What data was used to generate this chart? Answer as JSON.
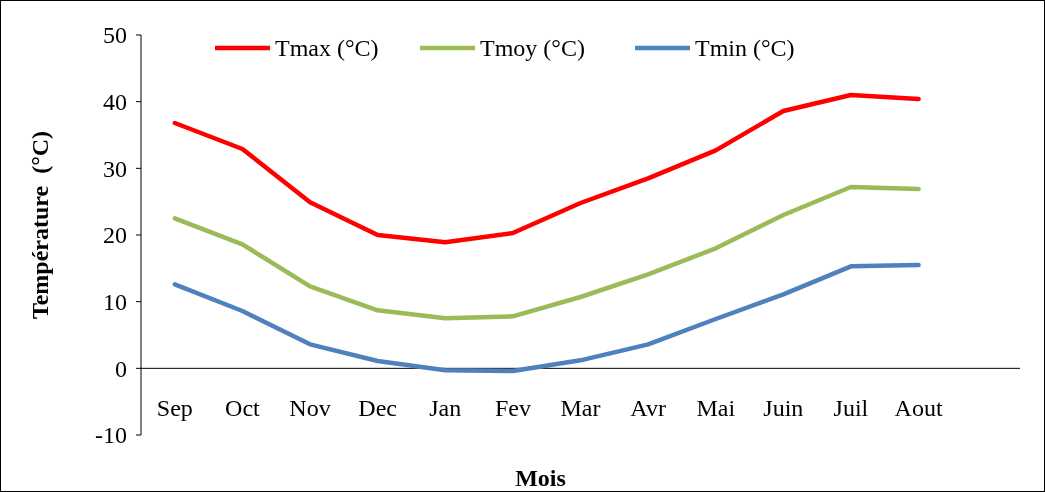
{
  "chart_data": {
    "type": "line",
    "xlabel": "Mois",
    "ylabel": "Température  (°C)",
    "categories": [
      "Sep",
      "Oct",
      "Nov",
      "Dec",
      "Jan",
      "Fev",
      "Mar",
      "Avr",
      "Mai",
      "Juin",
      "Juil",
      "Aout",
      null
    ],
    "series": [
      {
        "name": "Tmax (°C)",
        "color": "#ff0000",
        "values": [
          36.8,
          32.9,
          24.9,
          20.0,
          18.9,
          20.3,
          24.8,
          28.5,
          32.7,
          38.6,
          41.0,
          40.4,
          null
        ]
      },
      {
        "name": "Tmoy (°C)",
        "color": "#9bbb59",
        "values": [
          22.5,
          18.6,
          12.3,
          8.7,
          7.5,
          7.8,
          10.7,
          14.1,
          18.0,
          23.0,
          27.2,
          26.9,
          null
        ]
      },
      {
        "name": "Tmin (°C)",
        "color": "#4f81bd",
        "values": [
          12.6,
          8.6,
          3.6,
          1.1,
          -0.3,
          -0.4,
          1.2,
          3.6,
          7.4,
          11.1,
          15.3,
          15.5,
          null
        ]
      }
    ],
    "ylim": [
      -10,
      50
    ],
    "yticks": [
      -10,
      0,
      10,
      20,
      30,
      40,
      50
    ],
    "grid": false,
    "legend": "top",
    "marker": "none",
    "line_style": "solid"
  }
}
